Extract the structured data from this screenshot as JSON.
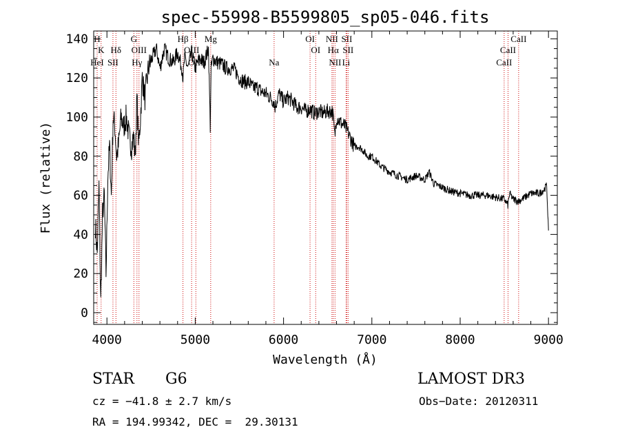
{
  "chart_data": {
    "type": "line",
    "title": "spec-55998-B5599805_sp05-046.fits",
    "xlabel": "Wavelength (Å)",
    "ylabel": "Flux (relative)",
    "xlim": [
      3850,
      9100
    ],
    "ylim": [
      -6,
      144
    ],
    "xticks": [
      4000,
      5000,
      6000,
      7000,
      8000,
      9000
    ],
    "yticks": [
      0,
      20,
      40,
      60,
      80,
      100,
      120,
      140
    ],
    "series": [
      {
        "name": "spectrum",
        "x": [
          3870,
          3890,
          3910,
          3930,
          3950,
          3970,
          3990,
          4010,
          4030,
          4050,
          4070,
          4090,
          4110,
          4130,
          4160,
          4190,
          4220,
          4250,
          4280,
          4300,
          4320,
          4340,
          4360,
          4380,
          4400,
          4430,
          4470,
          4510,
          4560,
          4600,
          4650,
          4700,
          4750,
          4800,
          4850,
          4861,
          4880,
          4920,
          4960,
          5000,
          5050,
          5100,
          5150,
          5170,
          5180,
          5200,
          5250,
          5300,
          5350,
          5400,
          5450,
          5500,
          5550,
          5600,
          5650,
          5700,
          5750,
          5800,
          5850,
          5890,
          5900,
          5950,
          6000,
          6050,
          6100,
          6150,
          6200,
          6250,
          6300,
          6350,
          6400,
          6450,
          6500,
          6550,
          6563,
          6580,
          6600,
          6650,
          6700,
          6750,
          6800,
          6850,
          6900,
          6950,
          7000,
          7100,
          7200,
          7300,
          7400,
          7500,
          7600,
          7650,
          7700,
          7800,
          7900,
          8000,
          8100,
          8200,
          8300,
          8400,
          8500,
          8540,
          8560,
          8600,
          8660,
          8700,
          8800,
          8900,
          8950,
          8980,
          9000
        ],
        "values": [
          45,
          30,
          65,
          5,
          50,
          60,
          20,
          70,
          85,
          60,
          100,
          95,
          80,
          85,
          100,
          95,
          100,
          90,
          85,
          90,
          80,
          110,
          85,
          100,
          120,
          110,
          125,
          130,
          135,
          125,
          135,
          130,
          128,
          133,
          125,
          120,
          130,
          125,
          133,
          125,
          130,
          128,
          135,
          95,
          125,
          130,
          128,
          127,
          125,
          125,
          124,
          120,
          118,
          118,
          115,
          115,
          113,
          112,
          110,
          108,
          105,
          112,
          108,
          110,
          108,
          105,
          105,
          103,
          104,
          102,
          103,
          102,
          103,
          103,
          100,
          90,
          100,
          97,
          95,
          90,
          85,
          85,
          83,
          80,
          80,
          75,
          72,
          70,
          68,
          70,
          68,
          72,
          66,
          64,
          62,
          61,
          60,
          60,
          60,
          59,
          58,
          55,
          61,
          58,
          57,
          58,
          61,
          61,
          63,
          65,
          42
        ]
      }
    ],
    "line_markers": [
      {
        "label": "H",
        "wavelength": 3889,
        "row": 0
      },
      {
        "label": "K",
        "wavelength": 3934,
        "row": 1
      },
      {
        "label": "HeI",
        "wavelength": 3889,
        "row": 2
      },
      {
        "label": "SII",
        "wavelength": 4068,
        "row": 2
      },
      {
        "label": "Hδ",
        "wavelength": 4102,
        "row": 1
      },
      {
        "label": "G",
        "wavelength": 4305,
        "row": 0
      },
      {
        "label": "OIII",
        "wavelength": 4363,
        "row": 1
      },
      {
        "label": "Hγ",
        "wavelength": 4340,
        "row": 2
      },
      {
        "label": "Hβ",
        "wavelength": 4861,
        "row": 0
      },
      {
        "label": "OIII",
        "wavelength": 4959,
        "row": 1
      },
      {
        "label": "OIII",
        "wavelength": 5007,
        "row": 2
      },
      {
        "label": "Mg",
        "wavelength": 5175,
        "row": 0
      },
      {
        "label": "Na",
        "wavelength": 5893,
        "row": 2
      },
      {
        "label": "OI",
        "wavelength": 6300,
        "row": 0
      },
      {
        "label": "OI",
        "wavelength": 6364,
        "row": 1
      },
      {
        "label": "NII",
        "wavelength": 6548,
        "row": 0
      },
      {
        "label": "Hα",
        "wavelength": 6563,
        "row": 1
      },
      {
        "label": "NII",
        "wavelength": 6583,
        "row": 2
      },
      {
        "label": "SII",
        "wavelength": 6716,
        "row": 0
      },
      {
        "label": "SII",
        "wavelength": 6731,
        "row": 1
      },
      {
        "label": "Li",
        "wavelength": 6708,
        "row": 2
      },
      {
        "label": "CaII",
        "wavelength": 8662,
        "row": 0
      },
      {
        "label": "CaII",
        "wavelength": 8542,
        "row": 1
      },
      {
        "label": "CaII",
        "wavelength": 8498,
        "row": 2
      }
    ],
    "marker_color": "#cc0000"
  },
  "info": {
    "object_class": "STAR",
    "subclass": "G6",
    "survey": "LAMOST DR3",
    "cz": "cz = −41.8 ± 2.7 km/s",
    "obs_date": "Obs−Date: 20120311",
    "coords": "RA = 194.99342, DEC =  29.30131"
  }
}
